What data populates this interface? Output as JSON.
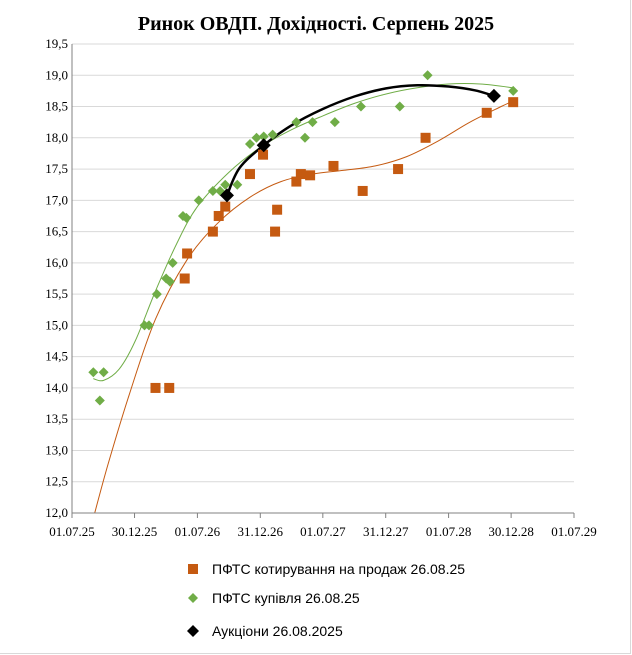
{
  "chart_data": {
    "type": "scatter",
    "title": "Ринок ОВДП. Дохідності.  Серпень 2025",
    "xlabel": "",
    "ylabel": "",
    "x_ticks": [
      "01.07.25",
      "30.12.25",
      "01.07.26",
      "31.12.26",
      "01.07.27",
      "31.12.27",
      "01.07.28",
      "30.12.28",
      "01.07.29"
    ],
    "x_tick_dates": [
      "2025-07-01",
      "2025-12-30",
      "2026-07-01",
      "2026-12-31",
      "2027-07-01",
      "2027-12-31",
      "2028-07-01",
      "2028-12-30",
      "2029-07-01"
    ],
    "y_ticks": [
      "12,0",
      "12,5",
      "13,0",
      "13,5",
      "14,0",
      "14,5",
      "15,0",
      "15,5",
      "16,0",
      "16,5",
      "17,0",
      "17,5",
      "18,0",
      "18,5",
      "19,0",
      "19,5"
    ],
    "ylim": [
      12.0,
      19.5
    ],
    "xlim": [
      "2025-07-01",
      "2029-07-01"
    ],
    "grid": "horizontal",
    "legend_position": "bottom",
    "series": [
      {
        "name": "ПФТС котирування на продаж 26.08.25",
        "marker": "square",
        "color": "#c55a11",
        "points": [
          {
            "x": "2026-03-01",
            "y": 14.0
          },
          {
            "x": "2026-04-10",
            "y": 14.0
          },
          {
            "x": "2026-05-25",
            "y": 15.75
          },
          {
            "x": "2026-06-01",
            "y": 16.15
          },
          {
            "x": "2026-08-15",
            "y": 16.5
          },
          {
            "x": "2026-09-01",
            "y": 16.75
          },
          {
            "x": "2026-09-20",
            "y": 16.9
          },
          {
            "x": "2026-12-01",
            "y": 17.42
          },
          {
            "x": "2027-01-08",
            "y": 17.73
          },
          {
            "x": "2027-02-12",
            "y": 16.5
          },
          {
            "x": "2027-02-18",
            "y": 16.85
          },
          {
            "x": "2027-04-15",
            "y": 17.3
          },
          {
            "x": "2027-04-28",
            "y": 17.42
          },
          {
            "x": "2027-05-25",
            "y": 17.4
          },
          {
            "x": "2027-08-01",
            "y": 17.55
          },
          {
            "x": "2027-10-25",
            "y": 17.15
          },
          {
            "x": "2028-02-05",
            "y": 17.5
          },
          {
            "x": "2028-04-25",
            "y": 18.0
          },
          {
            "x": "2028-10-20",
            "y": 18.4
          },
          {
            "x": "2029-01-05",
            "y": 18.57
          }
        ]
      },
      {
        "name": "ПФТС купівля 26.08.25",
        "marker": "diamond",
        "color": "#70ad47",
        "points": [
          {
            "x": "2025-09-01",
            "y": 14.25
          },
          {
            "x": "2025-09-20",
            "y": 13.8
          },
          {
            "x": "2025-10-01",
            "y": 14.25
          },
          {
            "x": "2026-01-28",
            "y": 15.0
          },
          {
            "x": "2026-02-10",
            "y": 15.0
          },
          {
            "x": "2026-03-05",
            "y": 15.5
          },
          {
            "x": "2026-04-01",
            "y": 15.75
          },
          {
            "x": "2026-04-12",
            "y": 15.7
          },
          {
            "x": "2026-04-20",
            "y": 16.0
          },
          {
            "x": "2026-05-20",
            "y": 16.75
          },
          {
            "x": "2026-05-30",
            "y": 16.72
          },
          {
            "x": "2026-07-05",
            "y": 17.0
          },
          {
            "x": "2026-08-15",
            "y": 17.15
          },
          {
            "x": "2026-09-05",
            "y": 17.15
          },
          {
            "x": "2026-09-20",
            "y": 17.25
          },
          {
            "x": "2026-10-25",
            "y": 17.25
          },
          {
            "x": "2026-12-01",
            "y": 17.9
          },
          {
            "x": "2026-12-20",
            "y": 18.0
          },
          {
            "x": "2027-01-10",
            "y": 18.02
          },
          {
            "x": "2027-02-05",
            "y": 18.05
          },
          {
            "x": "2027-04-15",
            "y": 18.25
          },
          {
            "x": "2027-05-10",
            "y": 18.0
          },
          {
            "x": "2027-06-01",
            "y": 18.25
          },
          {
            "x": "2027-08-05",
            "y": 18.25
          },
          {
            "x": "2027-10-20",
            "y": 18.5
          },
          {
            "x": "2028-02-10",
            "y": 18.5
          },
          {
            "x": "2028-05-01",
            "y": 19.0
          },
          {
            "x": "2029-01-05",
            "y": 18.75
          }
        ]
      },
      {
        "name": "Аукціони 26.08.2025",
        "marker": "diamond",
        "color": "#000000",
        "points": [
          {
            "x": "2026-09-25",
            "y": 17.08
          },
          {
            "x": "2027-01-10",
            "y": 17.88
          },
          {
            "x": "2028-11-10",
            "y": 18.67
          }
        ]
      }
    ],
    "trendlines": [
      {
        "series": "ПФТС котирування на продаж 26.08.25",
        "type": "polynomial",
        "color": "#c55a11",
        "points": [
          [
            "2025-09-05",
            12.0
          ],
          [
            "2025-10-15",
            12.8
          ],
          [
            "2025-12-15",
            13.9
          ],
          [
            "2026-03-01",
            15.1
          ],
          [
            "2026-06-01",
            16.05
          ],
          [
            "2026-09-01",
            16.65
          ],
          [
            "2026-12-01",
            17.05
          ],
          [
            "2027-03-01",
            17.3
          ],
          [
            "2027-06-01",
            17.42
          ],
          [
            "2027-09-01",
            17.48
          ],
          [
            "2027-12-01",
            17.55
          ],
          [
            "2028-03-01",
            17.7
          ],
          [
            "2028-06-01",
            17.95
          ],
          [
            "2028-09-01",
            18.25
          ],
          [
            "2028-12-01",
            18.5
          ],
          [
            "2029-01-10",
            18.6
          ]
        ]
      },
      {
        "series": "ПФТС купівля 26.08.25",
        "type": "polynomial",
        "color": "#70ad47",
        "points": [
          [
            "2025-09-01",
            14.15
          ],
          [
            "2025-10-01",
            14.12
          ],
          [
            "2025-11-15",
            14.3
          ],
          [
            "2026-01-01",
            14.75
          ],
          [
            "2026-03-01",
            15.55
          ],
          [
            "2026-05-01",
            16.3
          ],
          [
            "2026-07-01",
            16.9
          ],
          [
            "2026-10-01",
            17.45
          ],
          [
            "2027-01-01",
            17.85
          ],
          [
            "2027-04-01",
            18.13
          ],
          [
            "2027-07-01",
            18.35
          ],
          [
            "2027-10-01",
            18.55
          ],
          [
            "2028-01-01",
            18.7
          ],
          [
            "2028-04-01",
            18.8
          ],
          [
            "2028-07-01",
            18.86
          ],
          [
            "2028-10-01",
            18.86
          ],
          [
            "2029-01-05",
            18.8
          ]
        ]
      },
      {
        "series": "Аукціони 26.08.2025",
        "type": "polynomial",
        "color": "#000000",
        "points": [
          [
            "2026-09-25",
            17.08
          ],
          [
            "2026-11-01",
            17.52
          ],
          [
            "2027-01-10",
            17.88
          ],
          [
            "2027-04-01",
            18.2
          ],
          [
            "2027-07-01",
            18.46
          ],
          [
            "2027-10-01",
            18.66
          ],
          [
            "2028-01-01",
            18.79
          ],
          [
            "2028-04-01",
            18.84
          ],
          [
            "2028-07-01",
            18.82
          ],
          [
            "2028-09-15",
            18.76
          ],
          [
            "2028-11-10",
            18.67
          ]
        ]
      }
    ]
  },
  "colors": {
    "sale": "#c55a11",
    "buy": "#70ad47",
    "auction": "#000000",
    "grid": "#d9d9d9",
    "axis": "#808080"
  }
}
